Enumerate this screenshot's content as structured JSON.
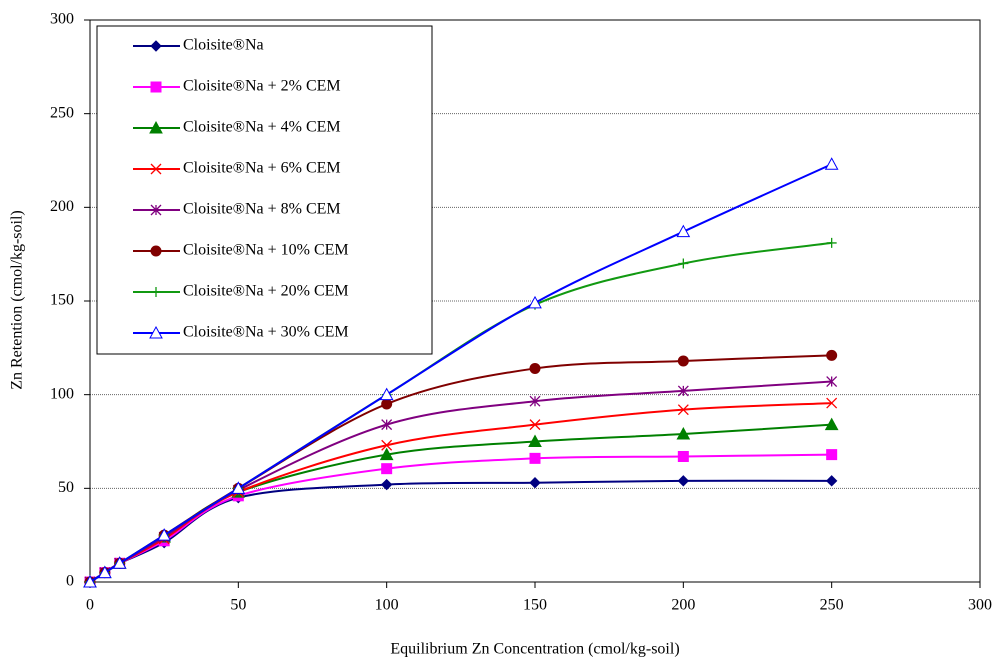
{
  "chart_data": {
    "type": "line",
    "x_label": "Equilibrium  Zn Concentration  (cmol/kg-soil)",
    "y_label": "Zn Retention (cmol/kg-soil)",
    "x": [
      0,
      5,
      10,
      25,
      50,
      100,
      150,
      200,
      250
    ],
    "xlim": [
      0,
      300
    ],
    "xticks": [
      0,
      50,
      100,
      150,
      200,
      250,
      300
    ],
    "ylim": [
      0,
      300
    ],
    "yticks": [
      0,
      50,
      100,
      150,
      200,
      250,
      300
    ],
    "grid": true,
    "smooth": true,
    "legend": "upper left",
    "series": [
      {
        "name": "Cloisite®Na",
        "color": "#000080",
        "marker": "diamond",
        "values": [
          0,
          5,
          10,
          21,
          45,
          52,
          53,
          54,
          54
        ]
      },
      {
        "name": "Cloisite®Na + 2% CEM",
        "color": "#ff00ff",
        "marker": "square",
        "values": [
          0,
          5,
          10,
          22,
          46,
          60.5,
          66,
          67,
          68
        ]
      },
      {
        "name": "Cloisite®Na + 4% CEM",
        "color": "#008000",
        "marker": "triangle",
        "values": [
          0,
          5,
          10,
          24,
          48,
          68,
          75,
          79,
          84
        ]
      },
      {
        "name": "Cloisite®Na + 6% CEM",
        "color": "#ff0000",
        "marker": "x",
        "values": [
          0,
          5,
          10,
          23,
          48,
          73,
          84,
          92,
          95.5
        ]
      },
      {
        "name": "Cloisite®Na + 8% CEM",
        "color": "#800080",
        "marker": "star",
        "values": [
          0,
          5,
          10,
          24,
          49,
          84,
          96.5,
          102,
          107
        ]
      },
      {
        "name": "Cloisite®Na + 10% CEM",
        "color": "#800000",
        "marker": "circle",
        "values": [
          0,
          5,
          10,
          25,
          50,
          95,
          114,
          118,
          121
        ]
      },
      {
        "name": "Cloisite®Na + 20% CEM",
        "color": "#119911",
        "marker": "plus",
        "values": [
          0,
          5,
          10,
          25,
          50,
          100,
          148,
          170,
          181
        ]
      },
      {
        "name": "Cloisite®Na + 30% CEM",
        "color": "#0000ff",
        "marker": "open-triangle",
        "values": [
          0,
          5,
          10,
          25,
          50,
          100,
          149,
          187,
          223
        ]
      }
    ]
  }
}
